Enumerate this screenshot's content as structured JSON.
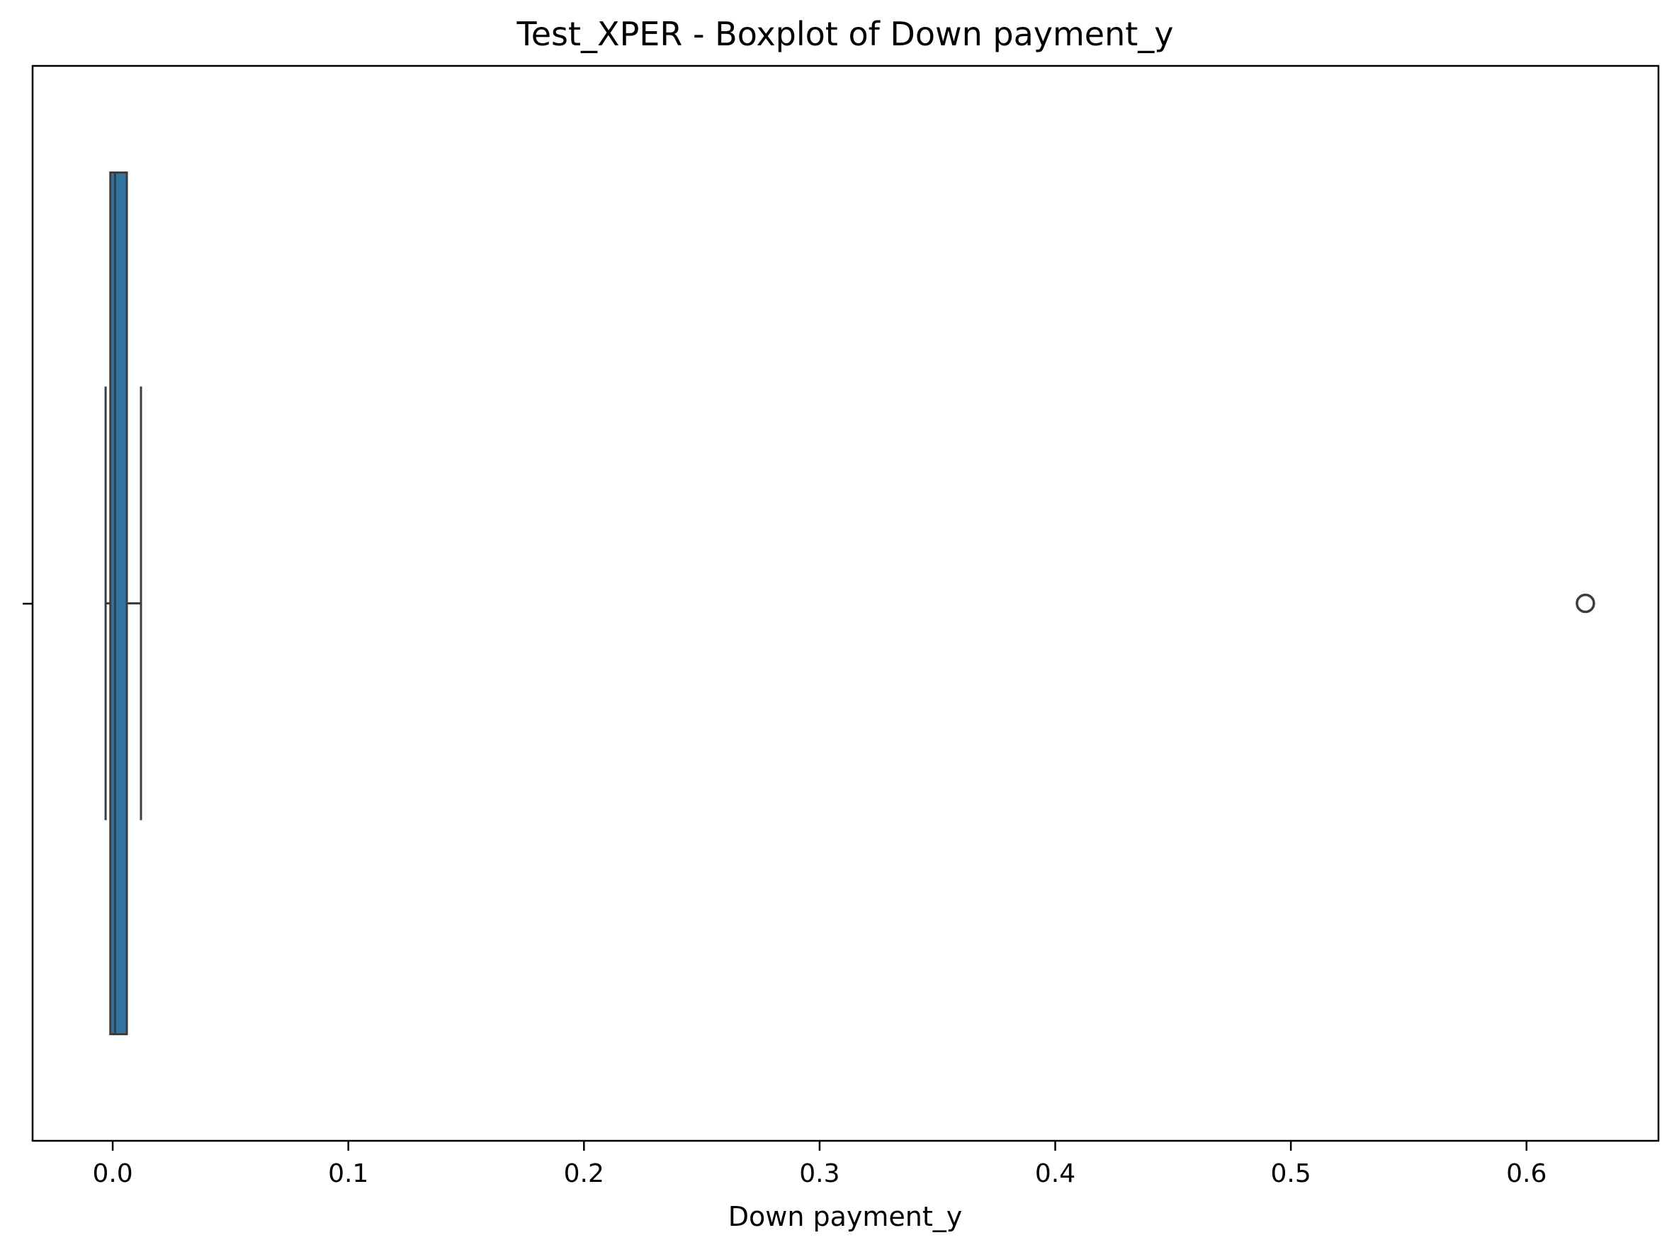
{
  "chart_data": {
    "type": "boxplot",
    "orientation": "horizontal",
    "title": "Test_XPER - Boxplot of Down payment_y",
    "xlabel": "Down payment_y",
    "ylabel": "",
    "xlim": [
      -0.034,
      0.656
    ],
    "x_ticks": [
      0.0,
      0.1,
      0.2,
      0.3,
      0.4,
      0.5,
      0.6
    ],
    "x_tick_labels": [
      "0.0",
      "0.1",
      "0.2",
      "0.3",
      "0.4",
      "0.5",
      "0.6"
    ],
    "grid": false,
    "boxes": [
      {
        "whisker_low": -0.003,
        "q1": -0.001,
        "median": 0.001,
        "q3": 0.006,
        "whisker_high": 0.012,
        "outliers": [
          0.625
        ],
        "color": "#3274a1"
      }
    ]
  }
}
